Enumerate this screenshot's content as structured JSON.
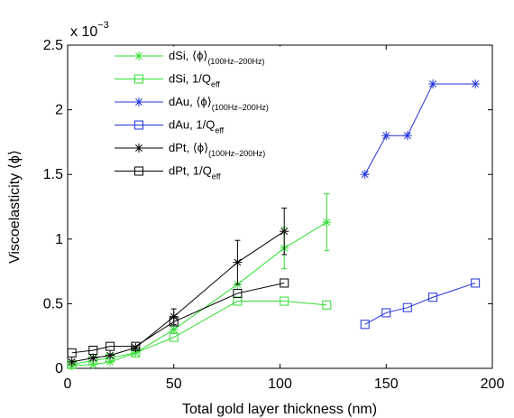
{
  "chart_data": {
    "type": "line",
    "xlabel": "Total gold layer thickness (nm)",
    "ylabel": "Viscoelasticity ⟨ϕ⟩",
    "y_exponent": {
      "base": "x 10",
      "power": "−3"
    },
    "xlim": [
      0,
      200
    ],
    "ylim": [
      0,
      2.5
    ],
    "xticks": [
      0,
      50,
      100,
      150,
      200
    ],
    "xtick_labels": [
      "0",
      "50",
      "100",
      "150",
      "200"
    ],
    "yticks": [
      0,
      0.5,
      1,
      1.5,
      2,
      2.5
    ],
    "ytick_labels": [
      "0",
      "0.5",
      "1",
      "1.5",
      "2",
      "2.5"
    ],
    "grid": false,
    "legend_position": "top-left",
    "series": [
      {
        "name": "dSi, ⟨ϕ⟩",
        "name_sub": "(100Hz–200Hz)",
        "color": "#33dd33",
        "marker": "asterisk",
        "x": [
          2,
          12,
          20,
          32,
          50,
          80,
          102,
          122
        ],
        "y": [
          0.02,
          0.03,
          0.05,
          0.12,
          0.3,
          0.65,
          0.93,
          1.13
        ],
        "err": [
          0,
          0,
          0,
          0,
          0.03,
          0,
          0.16,
          0.22
        ]
      },
      {
        "name": "dSi, 1/Q",
        "name_sub": "eff",
        "color": "#33dd33",
        "marker": "square",
        "x": [
          2,
          12,
          20,
          32,
          50,
          80,
          102,
          122
        ],
        "y": [
          0.03,
          0.06,
          0.08,
          0.12,
          0.24,
          0.52,
          0.52,
          0.49
        ],
        "err": []
      },
      {
        "name": "dAu, ⟨ϕ⟩",
        "name_sub": "(100Hz–200Hz)",
        "color": "#2233dd",
        "marker": "asterisk",
        "x": [
          140,
          150,
          160,
          172,
          192
        ],
        "y": [
          1.5,
          1.8,
          1.8,
          2.2,
          2.2
        ],
        "err": []
      },
      {
        "name": "dAu, 1/Q",
        "name_sub": "eff",
        "color": "#2233dd",
        "marker": "square",
        "x": [
          140,
          150,
          160,
          172,
          192
        ],
        "y": [
          0.34,
          0.43,
          0.47,
          0.55,
          0.66
        ],
        "err": []
      },
      {
        "name": "dPt, ⟨ϕ⟩",
        "name_sub": "(100Hz–200Hz)",
        "color": "#000000",
        "marker": "asterisk",
        "x": [
          2,
          12,
          20,
          32,
          50,
          80,
          102
        ],
        "y": [
          0.05,
          0.08,
          0.1,
          0.16,
          0.4,
          0.82,
          1.06
        ],
        "err": [
          0,
          0,
          0,
          0,
          0.06,
          0.17,
          0.18
        ]
      },
      {
        "name": "dPt, 1/Q",
        "name_sub": "eff",
        "color": "#000000",
        "marker": "square",
        "x": [
          2,
          12,
          20,
          32,
          50,
          80,
          102
        ],
        "y": [
          0.12,
          0.14,
          0.17,
          0.17,
          0.36,
          0.58,
          0.66
        ],
        "err": []
      }
    ]
  }
}
